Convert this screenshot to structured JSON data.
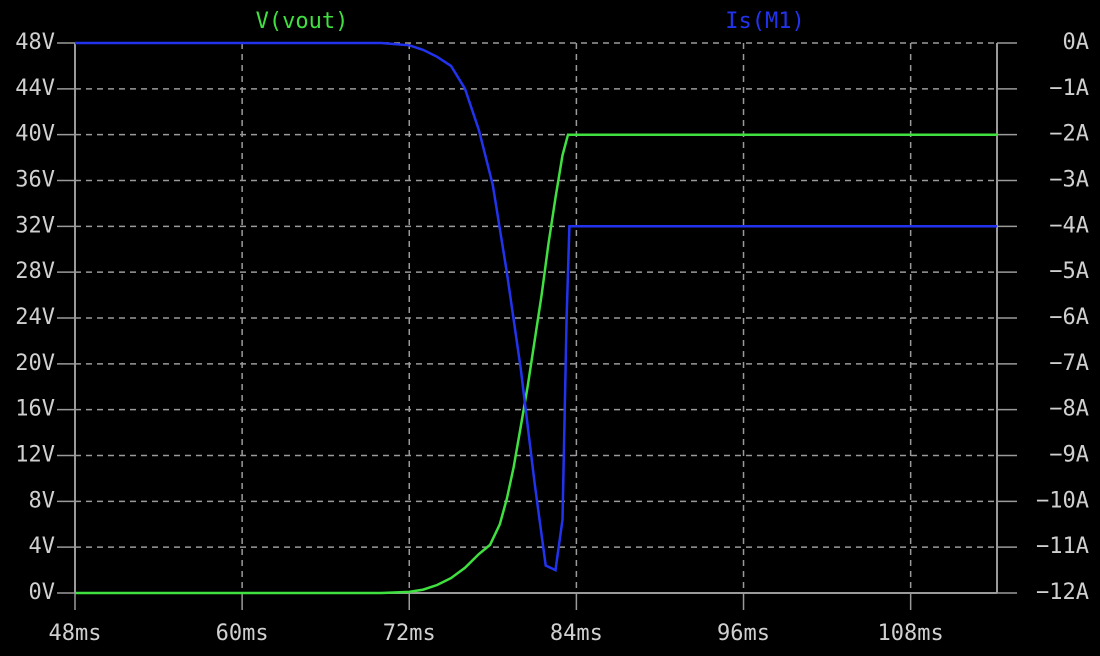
{
  "chart_data": {
    "type": "line",
    "series": [
      {
        "name": "V(vout)",
        "color": "#3fe03f",
        "axis": "y",
        "x": [
          48,
          60,
          70,
          72,
          73,
          74,
          75,
          76,
          77,
          77.8,
          78.5,
          79,
          79.5,
          80,
          80.5,
          81,
          81.5,
          82,
          82.5,
          83,
          83.4,
          90,
          100,
          114.2
        ],
        "values": [
          0,
          0,
          0,
          0.1,
          0.3,
          0.7,
          1.3,
          2.2,
          3.4,
          4.2,
          6,
          8.2,
          11,
          14.5,
          18,
          22,
          26,
          30.5,
          34.5,
          38.2,
          40,
          40,
          40,
          40
        ]
      },
      {
        "name": "Is(M1)",
        "color": "#2233ee",
        "axis": "y2",
        "x": [
          48,
          60,
          70,
          72,
          73,
          74,
          75,
          76,
          77,
          78,
          79,
          80,
          81,
          81.8,
          82.5,
          83,
          83.3,
          83.5,
          90,
          100,
          114.2
        ],
        "values": [
          0,
          0,
          0,
          -0.05,
          -0.15,
          -0.3,
          -0.5,
          -1,
          -1.9,
          -3.1,
          -5,
          -7.1,
          -9.6,
          -11.4,
          -11.5,
          -10.4,
          -6,
          -4,
          -4,
          -4,
          -4
        ]
      }
    ],
    "xlim": [
      48,
      114.2
    ],
    "xticks": [
      {
        "value": 48,
        "label": "48ms"
      },
      {
        "value": 60,
        "label": "60ms"
      },
      {
        "value": 72,
        "label": "72ms"
      },
      {
        "value": 84,
        "label": "84ms"
      },
      {
        "value": 96,
        "label": "96ms"
      },
      {
        "value": 108,
        "label": "108ms"
      }
    ],
    "ylim": [
      0,
      48
    ],
    "yticks": [
      {
        "value": 0,
        "label": "0V"
      },
      {
        "value": 4,
        "label": "4V"
      },
      {
        "value": 8,
        "label": "8V"
      },
      {
        "value": 12,
        "label": "12V"
      },
      {
        "value": 16,
        "label": "16V"
      },
      {
        "value": 20,
        "label": "20V"
      },
      {
        "value": 24,
        "label": "24V"
      },
      {
        "value": 28,
        "label": "28V"
      },
      {
        "value": 32,
        "label": "32V"
      },
      {
        "value": 36,
        "label": "36V"
      },
      {
        "value": 40,
        "label": "40V"
      },
      {
        "value": 44,
        "label": "44V"
      },
      {
        "value": 48,
        "label": "48V"
      }
    ],
    "y2lim": [
      -12,
      0
    ],
    "y2ticks": [
      {
        "value": -12,
        "label": "−12A"
      },
      {
        "value": -11,
        "label": "−11A"
      },
      {
        "value": -10,
        "label": "−10A"
      },
      {
        "value": -9,
        "label": "−9A"
      },
      {
        "value": -8,
        "label": "−8A"
      },
      {
        "value": -7,
        "label": "−7A"
      },
      {
        "value": -6,
        "label": "−6A"
      },
      {
        "value": -5,
        "label": "−5A"
      },
      {
        "value": -4,
        "label": "−4A"
      },
      {
        "value": -3,
        "label": "−3A"
      },
      {
        "value": -2,
        "label": "−2A"
      },
      {
        "value": -1,
        "label": "−1A"
      },
      {
        "value": 0,
        "label": "0A"
      }
    ],
    "grid": true
  }
}
